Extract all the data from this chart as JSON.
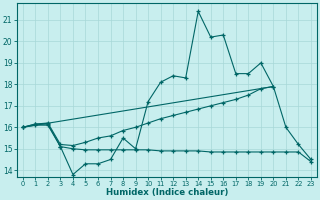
{
  "xlabel": "Humidex (Indice chaleur)",
  "bg_color": "#c8eeee",
  "grid_color": "#a8d8d8",
  "line_color": "#006666",
  "xlim_min": -0.5,
  "xlim_max": 23.5,
  "ylim_min": 13.7,
  "ylim_max": 21.8,
  "yticks": [
    14,
    15,
    16,
    17,
    18,
    19,
    20,
    21
  ],
  "xticks": [
    0,
    1,
    2,
    3,
    4,
    5,
    6,
    7,
    8,
    9,
    10,
    11,
    12,
    13,
    14,
    15,
    16,
    17,
    18,
    19,
    20,
    21,
    22,
    23
  ],
  "line1_x": [
    0,
    1,
    2,
    3,
    4,
    5,
    6,
    7,
    8,
    9,
    10,
    11,
    12,
    13,
    14,
    15,
    16,
    17,
    18,
    19,
    20,
    21,
    22,
    23
  ],
  "line1_y": [
    16.0,
    16.15,
    16.15,
    15.1,
    13.8,
    14.3,
    14.3,
    14.5,
    15.5,
    15.0,
    17.2,
    18.1,
    18.4,
    18.3,
    21.4,
    20.2,
    20.3,
    18.5,
    18.5,
    19.0,
    17.9,
    16.0,
    15.2,
    14.5
  ],
  "line2_x": [
    0,
    1,
    2,
    3,
    4,
    5,
    6,
    7,
    8,
    9,
    10,
    11,
    12,
    13,
    14,
    15,
    16,
    17,
    18,
    19,
    20
  ],
  "line2_y": [
    16.0,
    16.15,
    16.2,
    15.2,
    15.15,
    15.3,
    15.5,
    15.6,
    15.85,
    16.0,
    16.2,
    16.4,
    16.55,
    16.7,
    16.85,
    17.0,
    17.15,
    17.3,
    17.5,
    17.8,
    17.9
  ],
  "line3_x": [
    0,
    1,
    2,
    3,
    4,
    5,
    6,
    7,
    8,
    9,
    10,
    11,
    12,
    13,
    14,
    15,
    16,
    17,
    18,
    19,
    20,
    21,
    22,
    23
  ],
  "line3_y": [
    16.0,
    16.1,
    16.1,
    15.1,
    15.0,
    14.95,
    14.95,
    14.95,
    14.95,
    14.95,
    14.95,
    14.9,
    14.9,
    14.9,
    14.9,
    14.85,
    14.85,
    14.85,
    14.85,
    14.85,
    14.85,
    14.85,
    14.85,
    14.4
  ],
  "line4_x": [
    0,
    20
  ],
  "line4_y": [
    16.0,
    17.9
  ]
}
